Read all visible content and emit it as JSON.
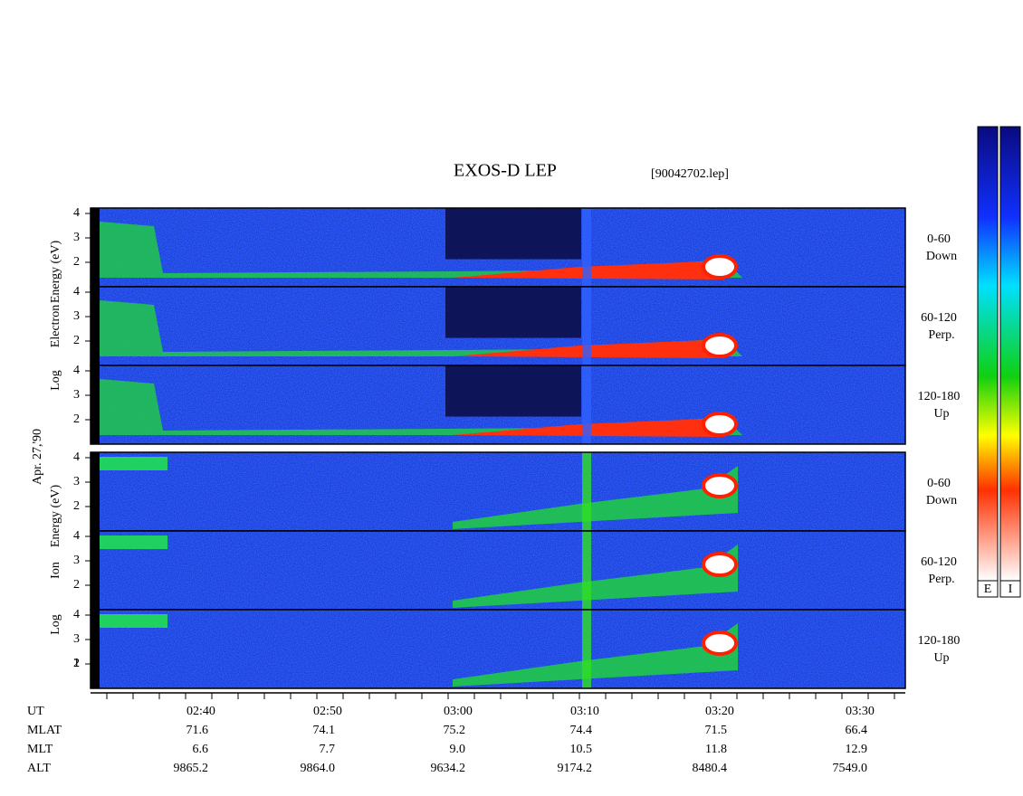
{
  "header": {
    "title": "EXOS-D LEP",
    "file": "[90042702.lep]",
    "date": "Apr. 27,'90"
  },
  "electron": {
    "axis_label": [
      "Log",
      "Electron",
      "Energy (eV)"
    ],
    "panels": [
      {
        "angle": "0-60",
        "direction": "Down"
      },
      {
        "angle": "60-120",
        "direction": "Perp."
      },
      {
        "angle": "120-180",
        "direction": "Up"
      }
    ]
  },
  "ion": {
    "axis_label": [
      "Log",
      "Ion",
      "Energy (eV)"
    ],
    "panels": [
      {
        "angle": "0-60",
        "direction": "Down"
      },
      {
        "angle": "60-120",
        "direction": "Perp."
      },
      {
        "angle": "120-180",
        "direction": "Up"
      }
    ]
  },
  "energy_ticks": [
    "4",
    "3",
    "2"
  ],
  "ion_last_tick": "1",
  "time_axis": {
    "rows": [
      {
        "name": "UT",
        "values": [
          "02:40",
          "02:50",
          "03:00",
          "03:10",
          "03:20",
          "03:30"
        ]
      },
      {
        "name": "MLAT",
        "values": [
          "71.6",
          "74.1",
          "75.2",
          "74.4",
          "71.5",
          "66.4"
        ]
      },
      {
        "name": "MLT",
        "values": [
          "6.6",
          "7.7",
          "9.0",
          "10.5",
          "11.8",
          "12.9"
        ]
      },
      {
        "name": "ALT",
        "values": [
          "9865.2",
          "9864.0",
          "9634.2",
          "9174.2",
          "8480.4",
          "7549.0"
        ]
      }
    ]
  },
  "colorbar": [
    "E",
    "I"
  ]
}
